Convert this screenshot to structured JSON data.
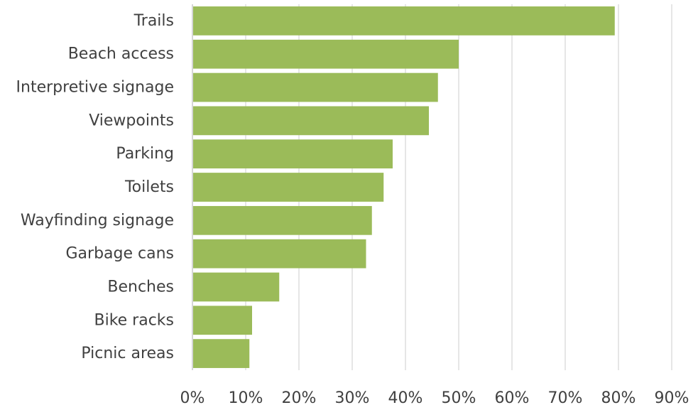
{
  "chart_data": {
    "type": "bar",
    "orientation": "horizontal",
    "title": "",
    "xlabel": "",
    "ylabel": "",
    "categories": [
      "Trails",
      "Beach access",
      "Interpretive signage",
      "Viewpoints",
      "Parking",
      "Toilets",
      "Wayfinding signage",
      "Garbage cans",
      "Benches",
      "Bike racks",
      "Picnic areas"
    ],
    "values": [
      79.3,
      50.0,
      46.1,
      44.4,
      37.6,
      35.9,
      33.7,
      32.6,
      16.3,
      11.2,
      10.7
    ],
    "value_format": "percent",
    "xlim": [
      0,
      90
    ],
    "x_ticks": [
      0,
      10,
      20,
      30,
      40,
      50,
      60,
      70,
      80,
      90
    ],
    "x_tick_labels": [
      "0%",
      "10%",
      "20%",
      "30%",
      "40%",
      "50%",
      "60%",
      "70%",
      "80%",
      "90%"
    ],
    "grid": "vertical",
    "legend": "none",
    "colors": {
      "bar": "#9BBB59",
      "grid": "#D9D9D9",
      "axis": "#BFBFBF",
      "text": "#404040"
    }
  }
}
